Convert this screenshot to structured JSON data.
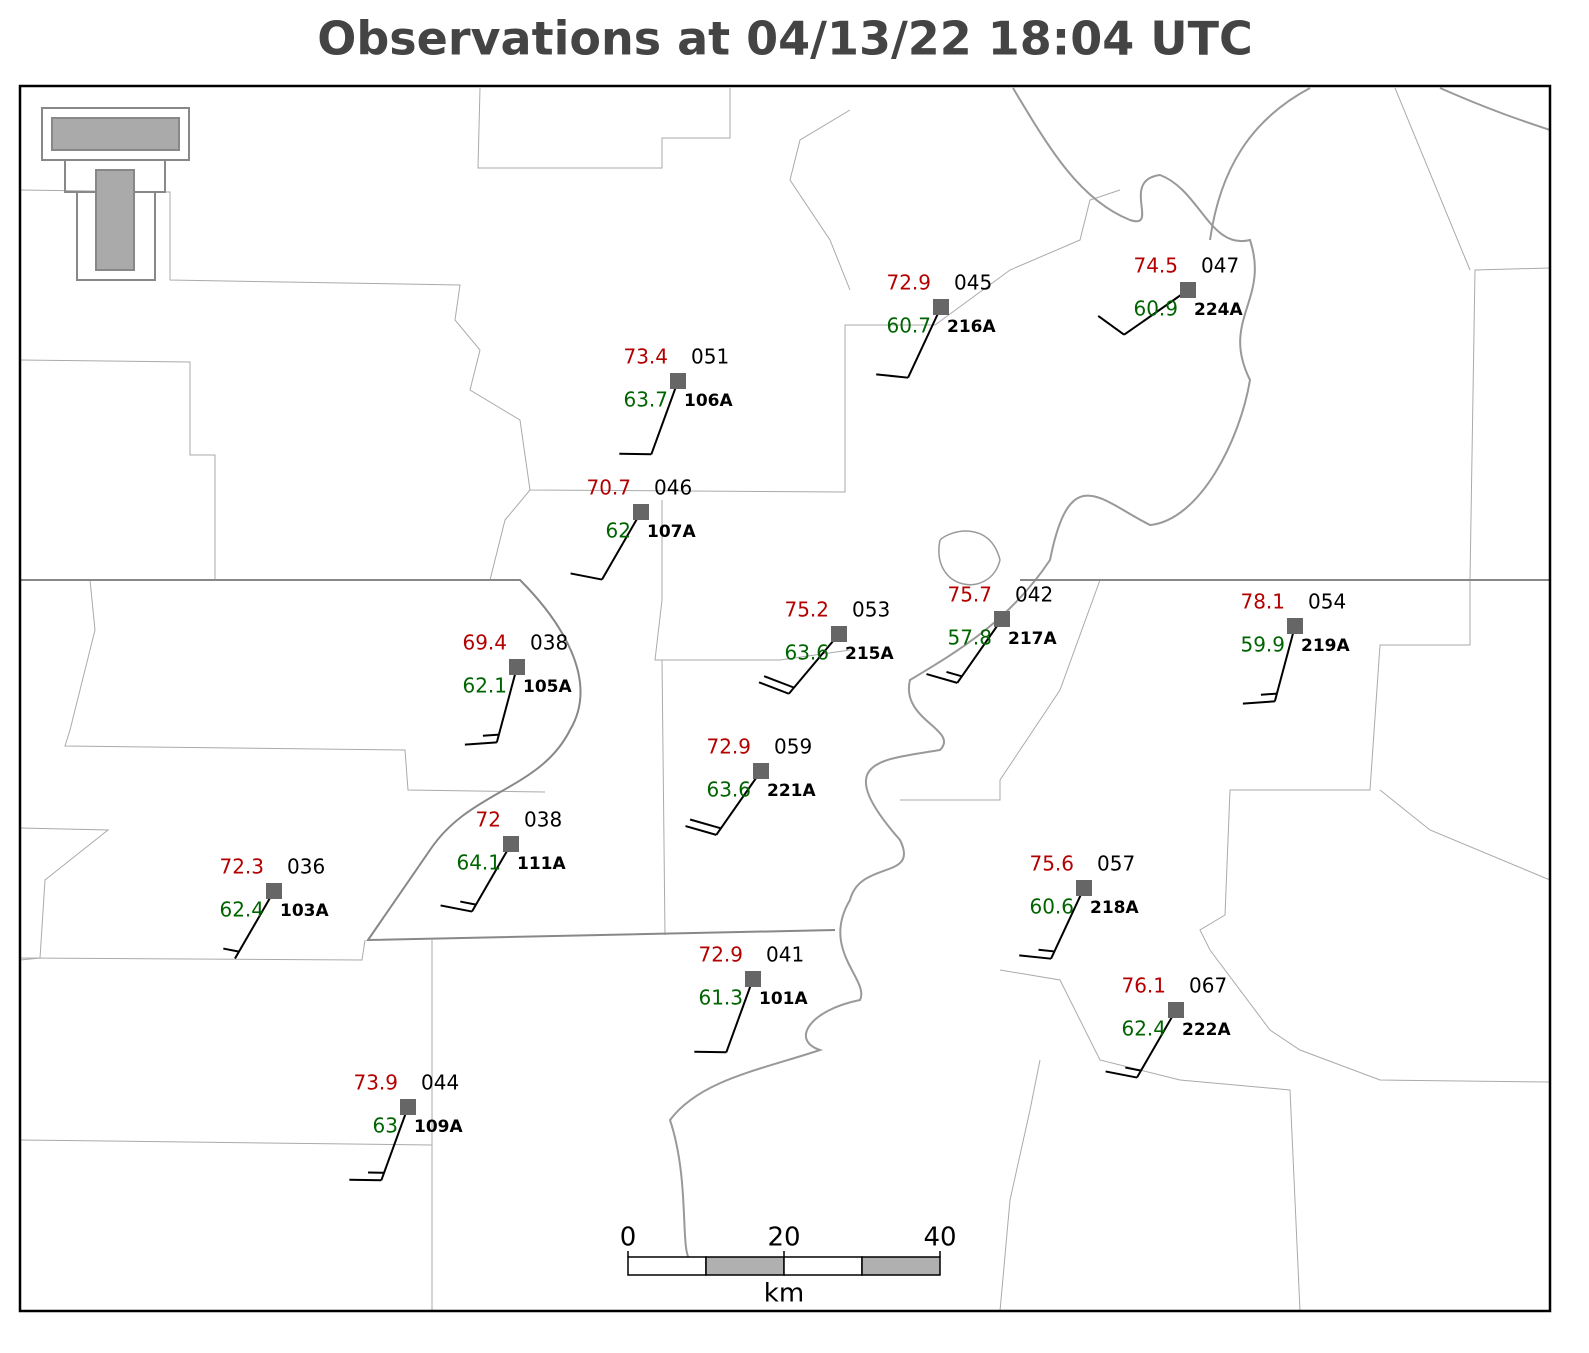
{
  "title": "Observations at 04/13/22 18:04 UTC",
  "stations": [
    {
      "id": "106A",
      "temperature": 73.4,
      "dewpoint": 63.7,
      "pressure": "051",
      "wind_direction": 200,
      "wind_speed": 10
    },
    {
      "id": "107A",
      "temperature": 70.7,
      "dewpoint": 62.0,
      "pressure": "046",
      "wind_direction": 210,
      "wind_speed": 10
    },
    {
      "id": "216A",
      "temperature": 72.9,
      "dewpoint": 60.7,
      "pressure": "045",
      "wind_direction": 205,
      "wind_speed": 10
    },
    {
      "id": "224A",
      "temperature": 74.5,
      "dewpoint": 60.9,
      "pressure": "047",
      "wind_direction": 235,
      "wind_speed": 10
    },
    {
      "id": "105A",
      "temperature": 69.4,
      "dewpoint": 62.1,
      "pressure": "038",
      "wind_direction": 195,
      "wind_speed": 15
    },
    {
      "id": "215A",
      "temperature": 75.2,
      "dewpoint": 63.6,
      "pressure": "053",
      "wind_direction": 220,
      "wind_speed": 20
    },
    {
      "id": "217A",
      "temperature": 75.7,
      "dewpoint": 57.8,
      "pressure": "042",
      "wind_direction": 215,
      "wind_speed": 15
    },
    {
      "id": "219A",
      "temperature": 78.1,
      "dewpoint": 59.9,
      "pressure": "054",
      "wind_direction": 195,
      "wind_speed": 15
    },
    {
      "id": "221A",
      "temperature": 72.9,
      "dewpoint": 63.6,
      "pressure": "059",
      "wind_direction": 215,
      "wind_speed": 20
    },
    {
      "id": "111A",
      "temperature": 72.0,
      "dewpoint": 64.1,
      "pressure": "038",
      "wind_direction": 210,
      "wind_speed": 15
    },
    {
      "id": "103A",
      "temperature": 72.3,
      "dewpoint": 62.4,
      "pressure": "036",
      "wind_direction": 210,
      "wind_speed": 5
    },
    {
      "id": "218A",
      "temperature": 75.6,
      "dewpoint": 60.6,
      "pressure": "057",
      "wind_direction": 205,
      "wind_speed": 15
    },
    {
      "id": "101A",
      "temperature": 72.9,
      "dewpoint": 61.3,
      "pressure": "041",
      "wind_direction": 200,
      "wind_speed": 10
    },
    {
      "id": "222A",
      "temperature": 76.1,
      "dewpoint": 62.4,
      "pressure": "067",
      "wind_direction": 210,
      "wind_speed": 15
    },
    {
      "id": "109A",
      "temperature": 73.9,
      "dewpoint": 63.0,
      "pressure": "044",
      "wind_direction": 200,
      "wind_speed": 15
    }
  ],
  "scale_bar": {
    "ticks": [
      0,
      20,
      40
    ],
    "unit": "km"
  }
}
